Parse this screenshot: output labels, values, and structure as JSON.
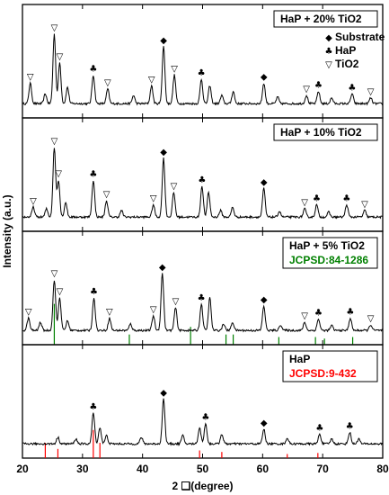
{
  "chart_data": {
    "type": "line",
    "xlabel": "2 ❑(degree)",
    "ylabel": "Intensity (a.u.)",
    "xlim": [
      20,
      80
    ],
    "xticks": [
      20,
      30,
      40,
      50,
      60,
      70,
      80
    ],
    "grid": false,
    "panels": [
      {
        "label": "HaP + 20% TiO2",
        "legend": [
          {
            "symbol": "◆",
            "label": "Substrate"
          },
          {
            "symbol": "♣",
            "label": "HaP"
          },
          {
            "symbol": "▽",
            "label": "TiO2"
          }
        ],
        "peaks": [
          [
            21.3,
            0.25
          ],
          [
            23.8,
            0.12
          ],
          [
            25.3,
            0.85
          ],
          [
            26.2,
            0.5
          ],
          [
            27.5,
            0.2
          ],
          [
            31.8,
            0.35
          ],
          [
            34.2,
            0.18
          ],
          [
            38.5,
            0.1
          ],
          [
            41.5,
            0.22
          ],
          [
            43.5,
            0.7
          ],
          [
            45.3,
            0.35
          ],
          [
            49.8,
            0.3
          ],
          [
            51.2,
            0.22
          ],
          [
            53.2,
            0.1
          ],
          [
            55.1,
            0.15
          ],
          [
            60.2,
            0.25
          ],
          [
            62.5,
            0.08
          ],
          [
            67.3,
            0.1
          ],
          [
            69.3,
            0.15
          ],
          [
            71.5,
            0.07
          ],
          [
            74.9,
            0.12
          ],
          [
            78.0,
            0.07
          ]
        ],
        "markers": [
          {
            "x": 21.3,
            "symbol": "▽"
          },
          {
            "x": 25.3,
            "symbol": "▽"
          },
          {
            "x": 26.2,
            "symbol": "▽"
          },
          {
            "x": 31.8,
            "symbol": "♣"
          },
          {
            "x": 34.2,
            "symbol": "▽"
          },
          {
            "x": 41.5,
            "symbol": "▽"
          },
          {
            "x": 43.5,
            "symbol": "◆"
          },
          {
            "x": 45.3,
            "symbol": "▽"
          },
          {
            "x": 49.8,
            "symbol": "♣"
          },
          {
            "x": 60.2,
            "symbol": "◆"
          },
          {
            "x": 67.3,
            "symbol": "▽"
          },
          {
            "x": 69.3,
            "symbol": "♣"
          },
          {
            "x": 74.9,
            "symbol": "♣"
          },
          {
            "x": 78.0,
            "symbol": "▽"
          }
        ],
        "ref_lines": []
      },
      {
        "label": "HaP + 10% TiO2",
        "legend": [],
        "peaks": [
          [
            21.8,
            0.12
          ],
          [
            24.0,
            0.1
          ],
          [
            25.3,
            0.85
          ],
          [
            26.0,
            0.45
          ],
          [
            27.2,
            0.18
          ],
          [
            31.8,
            0.45
          ],
          [
            34.0,
            0.2
          ],
          [
            36.5,
            0.08
          ],
          [
            41.8,
            0.15
          ],
          [
            43.5,
            0.72
          ],
          [
            45.2,
            0.3
          ],
          [
            49.9,
            0.38
          ],
          [
            51.0,
            0.3
          ],
          [
            53.0,
            0.08
          ],
          [
            55.0,
            0.12
          ],
          [
            60.2,
            0.35
          ],
          [
            62.8,
            0.07
          ],
          [
            67.0,
            0.1
          ],
          [
            69.0,
            0.15
          ],
          [
            71.0,
            0.06
          ],
          [
            74.0,
            0.15
          ],
          [
            77.0,
            0.08
          ]
        ],
        "markers": [
          {
            "x": 21.8,
            "symbol": "▽"
          },
          {
            "x": 25.3,
            "symbol": "▽"
          },
          {
            "x": 26.0,
            "symbol": "▽"
          },
          {
            "x": 31.8,
            "symbol": "♣"
          },
          {
            "x": 34.0,
            "symbol": "▽"
          },
          {
            "x": 41.8,
            "symbol": "▽"
          },
          {
            "x": 43.5,
            "symbol": "◆"
          },
          {
            "x": 45.2,
            "symbol": "▽"
          },
          {
            "x": 49.9,
            "symbol": "♣"
          },
          {
            "x": 60.2,
            "symbol": "◆"
          },
          {
            "x": 67.0,
            "symbol": "▽"
          },
          {
            "x": 69.0,
            "symbol": "♣"
          },
          {
            "x": 74.0,
            "symbol": "♣"
          },
          {
            "x": 77.0,
            "symbol": "▽"
          }
        ],
        "ref_lines": []
      },
      {
        "label": "HaP + 5% TiO2",
        "sublabel": "JCPSD:84-1286",
        "sublabel_color": "#008000",
        "legend": [],
        "peaks": [
          [
            21.0,
            0.15
          ],
          [
            23.0,
            0.1
          ],
          [
            25.3,
            0.62
          ],
          [
            26.2,
            0.4
          ],
          [
            27.5,
            0.12
          ],
          [
            31.9,
            0.4
          ],
          [
            34.5,
            0.15
          ],
          [
            38.0,
            0.08
          ],
          [
            41.8,
            0.18
          ],
          [
            43.3,
            0.7
          ],
          [
            45.5,
            0.28
          ],
          [
            49.8,
            0.32
          ],
          [
            51.2,
            0.4
          ],
          [
            53.5,
            0.08
          ],
          [
            55.0,
            0.1
          ],
          [
            60.2,
            0.3
          ],
          [
            63.0,
            0.07
          ],
          [
            67.0,
            0.1
          ],
          [
            69.3,
            0.14
          ],
          [
            71.5,
            0.06
          ],
          [
            74.6,
            0.15
          ],
          [
            78.0,
            0.07
          ]
        ],
        "markers": [
          {
            "x": 21.0,
            "symbol": "▽"
          },
          {
            "x": 25.3,
            "symbol": "▽"
          },
          {
            "x": 26.2,
            "symbol": "▽"
          },
          {
            "x": 31.9,
            "symbol": "♣"
          },
          {
            "x": 34.5,
            "symbol": "▽"
          },
          {
            "x": 41.8,
            "symbol": "▽"
          },
          {
            "x": 43.3,
            "symbol": "◆"
          },
          {
            "x": 45.5,
            "symbol": "▽"
          },
          {
            "x": 49.8,
            "symbol": "♣"
          },
          {
            "x": 60.2,
            "symbol": "◆"
          },
          {
            "x": 67.0,
            "symbol": "▽"
          },
          {
            "x": 69.3,
            "symbol": "♣"
          },
          {
            "x": 74.6,
            "symbol": "♣"
          },
          {
            "x": 78.0,
            "symbol": "▽"
          }
        ],
        "ref_lines": [
          [
            25.3,
            0.8
          ],
          [
            37.8,
            0.2
          ],
          [
            48.0,
            0.35
          ],
          [
            53.9,
            0.2
          ],
          [
            55.1,
            0.2
          ],
          [
            62.7,
            0.15
          ],
          [
            68.8,
            0.15
          ],
          [
            70.3,
            0.12
          ],
          [
            75.0,
            0.15
          ]
        ],
        "ref_color": "#008000"
      },
      {
        "label": "HaP",
        "sublabel": "JCPSD:9-432",
        "sublabel_color": "#ff0000",
        "legend": [],
        "peaks": [
          [
            25.9,
            0.08
          ],
          [
            28.9,
            0.06
          ],
          [
            31.8,
            0.38
          ],
          [
            32.9,
            0.2
          ],
          [
            34.0,
            0.1
          ],
          [
            39.8,
            0.08
          ],
          [
            43.5,
            0.55
          ],
          [
            46.7,
            0.1
          ],
          [
            49.5,
            0.2
          ],
          [
            50.5,
            0.25
          ],
          [
            53.2,
            0.12
          ],
          [
            60.2,
            0.18
          ],
          [
            64.1,
            0.07
          ],
          [
            69.5,
            0.12
          ],
          [
            71.5,
            0.06
          ],
          [
            74.5,
            0.14
          ],
          [
            76.0,
            0.06
          ]
        ],
        "markers": [
          {
            "x": 31.8,
            "symbol": "♣"
          },
          {
            "x": 43.5,
            "symbol": "◆"
          },
          {
            "x": 50.5,
            "symbol": "♣"
          },
          {
            "x": 60.2,
            "symbol": "◆"
          },
          {
            "x": 69.5,
            "symbol": "♣"
          },
          {
            "x": 74.5,
            "symbol": "♣"
          }
        ],
        "ref_lines": [
          [
            23.8,
            0.3
          ],
          [
            25.9,
            0.18
          ],
          [
            31.8,
            0.55
          ],
          [
            32.9,
            0.3
          ],
          [
            49.5,
            0.15
          ],
          [
            53.2,
            0.12
          ],
          [
            64.1,
            0.08
          ],
          [
            69.2,
            0.1
          ]
        ],
        "ref_color": "#ff0000"
      }
    ]
  }
}
